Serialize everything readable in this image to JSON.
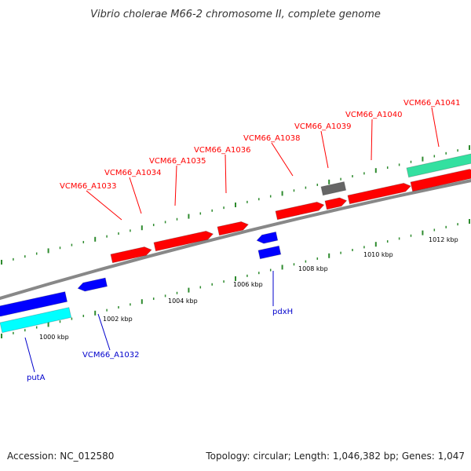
{
  "title": "Vibrio cholerae M66-2 chromosome II, complete genome",
  "colors": {
    "forward_gene": "#ff0000",
    "reverse_gene": "#0000ff",
    "forward_rna": "#33e0a0",
    "reverse_rna": "#00ffff",
    "other_feature": "#666666",
    "backbone": "#808080",
    "forward_label": "#ff0000",
    "reverse_label": "#0000cc",
    "tick": "#2e8b2e"
  },
  "labels": {
    "forward": [
      "VCM66_A1033",
      "VCM66_A1034",
      "VCM66_A1035",
      "VCM66_A1036",
      "VCM66_A1038",
      "VCM66_A1039",
      "VCM66_A1040",
      "VCM66_A1041"
    ],
    "reverse": [
      "putA",
      "VCM66_A1032",
      "pdxH"
    ]
  },
  "scale": {
    "kbp_labels": [
      "1000 kbp",
      "1002 kbp",
      "1004 kbp",
      "1006 kbp",
      "1008 kbp",
      "1010 kbp",
      "1012 kbp"
    ]
  },
  "footer": {
    "accession": "Accession: NC_012580",
    "topology": "Topology: circular; Length: 1,046,382 bp; Genes: 1,047"
  }
}
